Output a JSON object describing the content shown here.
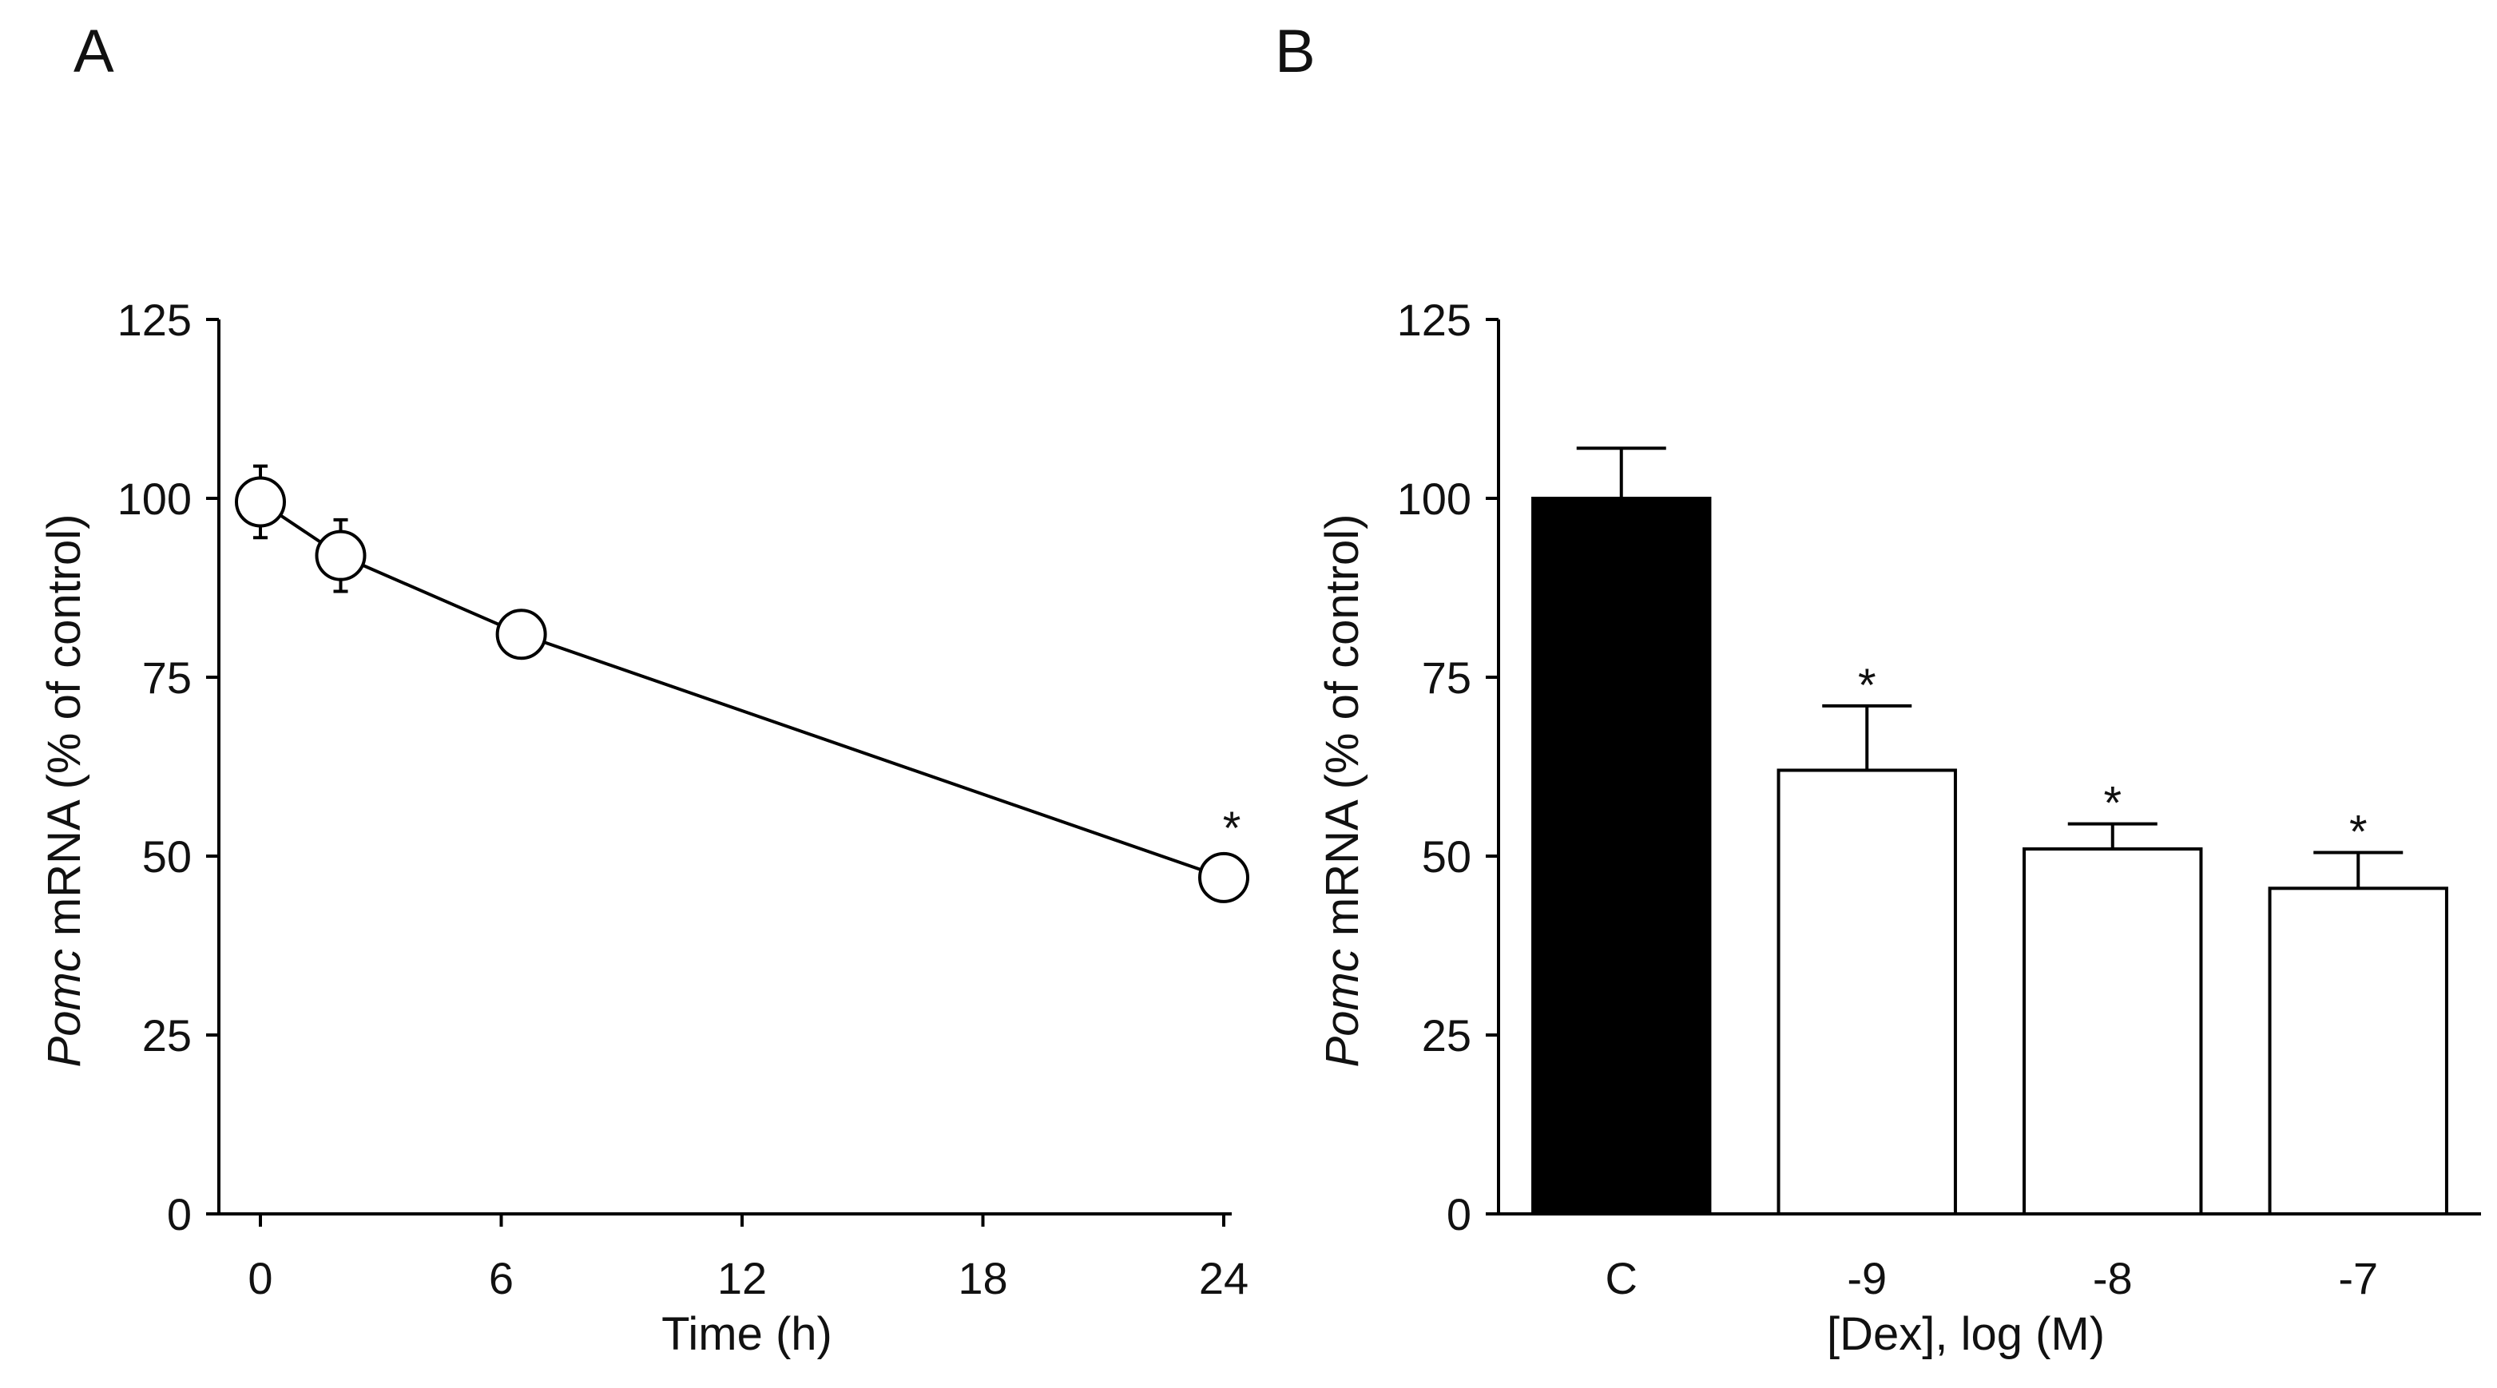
{
  "panels": [
    {
      "label": "A"
    },
    {
      "label": "B"
    }
  ],
  "chart_data": [
    {
      "type": "line",
      "panel": "A",
      "title": "",
      "xlabel": "Time (h)",
      "ylabel_italic": "Pomc",
      "ylabel_rest": " mRNA (% of control)",
      "xlim": [
        0,
        24
      ],
      "ylim": [
        0,
        125
      ],
      "xticks": [
        0,
        6,
        12,
        18,
        24
      ],
      "xtick_labels": [
        "0",
        "6",
        "12",
        "18",
        "24"
      ],
      "yticks": [
        0,
        25,
        50,
        75,
        100,
        125
      ],
      "ytick_labels": [
        "0",
        "25",
        "50",
        "75",
        "100",
        "125"
      ],
      "series": [
        {
          "name": "Pomc mRNA",
          "x": [
            0,
            2,
            6.5,
            24
          ],
          "y": [
            99.5,
            92,
            81,
            47
          ],
          "err": [
            5,
            5,
            2,
            3
          ],
          "significance": [
            "",
            "",
            "",
            "*"
          ]
        }
      ],
      "grid": false
    },
    {
      "type": "bar",
      "panel": "B",
      "title": "",
      "xlabel": "[Dex], log (M)",
      "ylabel_italic": "Pomc",
      "ylabel_rest": " mRNA (% of control)",
      "ylim": [
        0,
        125
      ],
      "yticks": [
        0,
        25,
        50,
        75,
        100,
        125
      ],
      "ytick_labels": [
        "0",
        "25",
        "50",
        "75",
        "100",
        "125"
      ],
      "categories": [
        "C",
        "-9",
        "-8",
        "-7"
      ],
      "values": [
        100,
        62,
        51,
        45.5
      ],
      "errors": [
        7,
        9,
        3.5,
        5
      ],
      "bar_colors": [
        "#000000",
        "#ffffff",
        "#ffffff",
        "#ffffff"
      ],
      "significance": [
        "",
        "*",
        "*",
        "*"
      ],
      "grid": false
    }
  ]
}
